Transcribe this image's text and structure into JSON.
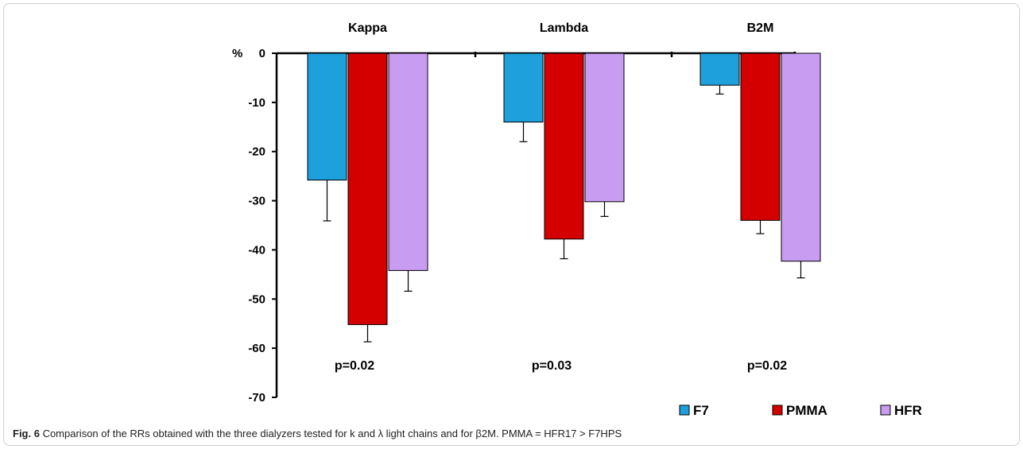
{
  "chart_data": {
    "type": "bar",
    "categories": [
      "Kappa",
      "Lambda",
      "B2M"
    ],
    "series": [
      {
        "name": "F7",
        "values": [
          -25.8,
          -14.0,
          -6.5
        ],
        "errors": [
          8.3,
          4.0,
          1.8
        ]
      },
      {
        "name": "PMMA",
        "values": [
          -55.2,
          -37.8,
          -34.0
        ],
        "errors": [
          3.5,
          4.0,
          2.7
        ]
      },
      {
        "name": "HFR",
        "values": [
          -44.2,
          -30.2,
          -42.3
        ],
        "errors": [
          4.2,
          3.0,
          3.4
        ]
      }
    ],
    "ylabel": "%",
    "ylim": [
      -70,
      0
    ],
    "yticks": [
      0,
      -10,
      -20,
      -30,
      -40,
      -50,
      -60,
      -70
    ],
    "annotations": [
      "p=0.02",
      "p=0.03",
      "p=0.02"
    ],
    "legend": "bottom-right",
    "grid": false,
    "colors": {
      "F7": "#1ea0dc",
      "PMMA": "#d40000",
      "HFR": "#c89cf0"
    }
  },
  "caption": {
    "label": "Fig. 6",
    "text": " Comparison of the RRs obtained with the three dialyzers tested for k and λ light chains and for β2M. PMMA = HFR17 > F7HPS"
  }
}
